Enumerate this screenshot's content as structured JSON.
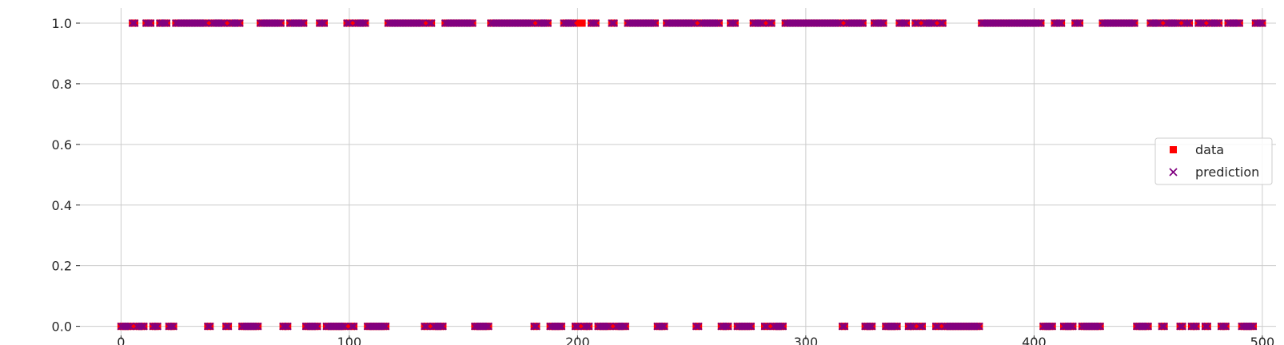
{
  "chart_data": {
    "type": "scatter",
    "title": "",
    "xlabel": "",
    "ylabel": "",
    "xlim": [
      -18,
      506
    ],
    "ylim": [
      -0.03,
      1.05
    ],
    "x_ticks": [
      0,
      100,
      200,
      300,
      400,
      500
    ],
    "y_ticks": [
      0.0,
      0.2,
      0.4,
      0.6,
      0.8,
      1.0
    ],
    "x_tick_labels": [
      "0",
      "100",
      "200",
      "300",
      "400",
      "500"
    ],
    "y_tick_labels": [
      "0.0",
      "0.2",
      "0.4",
      "0.6",
      "0.8",
      "1.0"
    ],
    "grid": true,
    "legend_position": "center-right",
    "colors": {
      "data": "#ff0000",
      "prediction": "#800080",
      "grid": "#cccccc",
      "text": "#262626"
    },
    "x_range": [
      0,
      500
    ],
    "ones_indices": [
      5,
      6,
      11,
      12,
      13,
      17,
      18,
      19,
      20,
      24,
      25,
      26,
      27,
      28,
      29,
      30,
      31,
      32,
      33,
      34,
      35,
      36,
      37,
      40,
      41,
      42,
      43,
      44,
      45,
      48,
      49,
      50,
      51,
      52,
      61,
      62,
      63,
      64,
      65,
      66,
      67,
      68,
      69,
      70,
      74,
      75,
      76,
      77,
      78,
      79,
      80,
      87,
      88,
      89,
      99,
      100,
      103,
      104,
      105,
      106,
      107,
      117,
      118,
      119,
      120,
      121,
      122,
      123,
      124,
      125,
      126,
      127,
      128,
      129,
      130,
      131,
      132,
      135,
      136,
      142,
      143,
      144,
      145,
      146,
      147,
      148,
      149,
      150,
      151,
      152,
      153,
      154,
      162,
      163,
      164,
      165,
      166,
      167,
      168,
      169,
      170,
      171,
      172,
      173,
      174,
      175,
      176,
      177,
      178,
      179,
      180,
      183,
      184,
      185,
      186,
      187,
      194,
      195,
      196,
      197,
      198,
      201,
      202,
      206,
      207,
      208,
      215,
      216,
      222,
      223,
      224,
      225,
      226,
      227,
      228,
      229,
      230,
      231,
      232,
      233,
      234,
      239,
      240,
      241,
      242,
      243,
      244,
      245,
      246,
      247,
      248,
      249,
      250,
      251,
      254,
      255,
      256,
      257,
      258,
      259,
      260,
      261,
      262,
      267,
      268,
      269,
      277,
      278,
      279,
      280,
      281,
      284,
      285,
      291,
      292,
      293,
      294,
      295,
      296,
      297,
      298,
      299,
      300,
      301,
      302,
      303,
      304,
      305,
      306,
      307,
      308,
      309,
      310,
      311,
      312,
      313,
      314,
      315,
      318,
      319,
      320,
      321,
      322,
      323,
      324,
      325,
      330,
      331,
      332,
      333,
      334,
      341,
      342,
      343,
      344,
      348,
      349,
      352,
      353,
      354,
      355,
      356,
      359,
      360,
      377,
      378,
      379,
      380,
      381,
      382,
      383,
      384,
      385,
      386,
      387,
      388,
      389,
      390,
      391,
      392,
      393,
      394,
      395,
      396,
      397,
      398,
      399,
      400,
      401,
      402,
      403,
      409,
      410,
      411,
      412,
      418,
      419,
      420,
      430,
      431,
      432,
      433,
      434,
      435,
      436,
      437,
      438,
      439,
      440,
      441,
      442,
      443,
      444,
      451,
      452,
      453,
      454,
      455,
      458,
      459,
      460,
      461,
      462,
      463,
      466,
      467,
      468,
      472,
      473,
      474,
      477,
      478,
      479,
      480,
      481,
      485,
      486,
      487,
      488,
      489,
      490,
      497,
      498,
      499,
      500
    ],
    "data_only_ones": [
      201,
      202
    ],
    "data_only_zeros": [
      66,
      67
    ],
    "legend": [
      {
        "label": "data",
        "marker": "square",
        "color": "#ff0000"
      },
      {
        "label": "prediction",
        "marker": "x",
        "color": "#800080"
      }
    ]
  }
}
